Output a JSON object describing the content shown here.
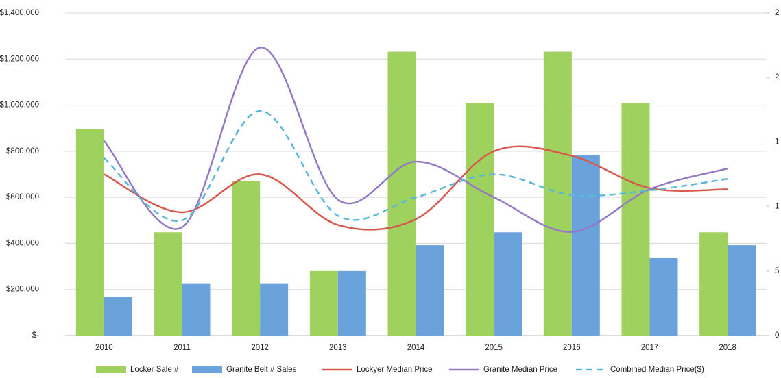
{
  "chart_data": {
    "type": "bar-line",
    "categories": [
      "2010",
      "2011",
      "2012",
      "2013",
      "2014",
      "2015",
      "2016",
      "2017",
      "2018"
    ],
    "series": [
      {
        "name": "Locker Sale #",
        "type": "bar",
        "axis": "y2",
        "color": "#9ed15e",
        "values": [
          16,
          8,
          12,
          5,
          22,
          18,
          22,
          18,
          8
        ]
      },
      {
        "name": "Granite Belt # Sales",
        "type": "bar",
        "axis": "y2",
        "color": "#6aa2dc",
        "values": [
          3,
          4,
          4,
          5,
          7,
          8,
          14,
          6,
          7
        ]
      },
      {
        "name": "Lockyer Median Price",
        "type": "line",
        "color": "#d9574c",
        "values": [
          700000,
          535000,
          700000,
          480000,
          505000,
          800000,
          780000,
          640000,
          635000
        ]
      },
      {
        "name": "Granite Median Price",
        "type": "line",
        "color": "#9479c6",
        "values": [
          845000,
          470000,
          1250000,
          590000,
          755000,
          600000,
          450000,
          635000,
          725000
        ]
      },
      {
        "name": "Combined Median Price($)",
        "type": "line",
        "dashed": true,
        "color": "#5ab8d9",
        "values": [
          770000,
          500000,
          975000,
          520000,
          600000,
          700000,
          610000,
          630000,
          680000
        ]
      }
    ],
    "ylim": [
      0,
      1400000
    ],
    "yticks": [
      {
        "value": 0,
        "label": "$-"
      },
      {
        "value": 200000,
        "label": "$200,000"
      },
      {
        "value": 400000,
        "label": "$400,000"
      },
      {
        "value": 600000,
        "label": "$600,000"
      },
      {
        "value": 800000,
        "label": "$800,000"
      },
      {
        "value": 1000000,
        "label": "$1,000,000"
      },
      {
        "value": 1200000,
        "label": "$1,200,000"
      },
      {
        "value": 1400000,
        "label": "$1,400,000"
      }
    ],
    "y2lim": [
      0,
      25
    ],
    "y2ticks": [
      0,
      5,
      {
        "value": 10,
        "label": "1"
      },
      {
        "value": 15,
        "label": "1"
      },
      {
        "value": 20,
        "label": "2"
      },
      {
        "value": 25,
        "label": "2"
      }
    ],
    "grid": true,
    "legend": "bottom"
  }
}
